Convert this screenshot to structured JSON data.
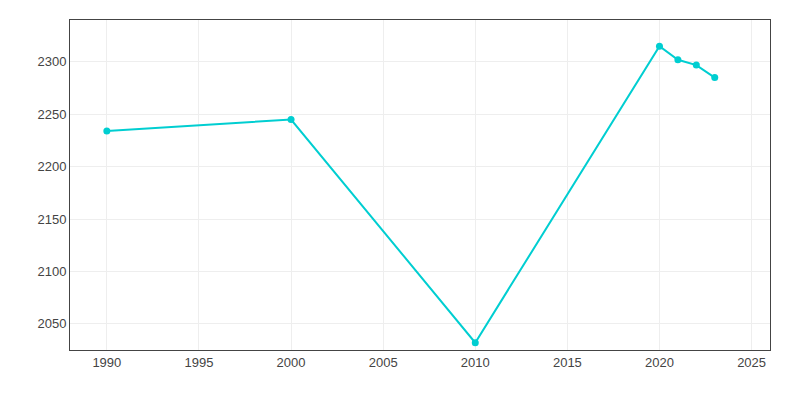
{
  "chart_data": {
    "type": "line",
    "x": [
      1990,
      2000,
      2010,
      2020,
      2021,
      2022,
      2023
    ],
    "values": [
      2234,
      2245,
      2032,
      2315,
      2302,
      2297,
      2285
    ],
    "color": "#00CED1",
    "marker": "circle",
    "xlim": [
      1988,
      2026
    ],
    "ylim": [
      2025,
      2340
    ],
    "xticks": [
      1990,
      1995,
      2000,
      2005,
      2010,
      2015,
      2020,
      2025
    ],
    "yticks": [
      2050,
      2100,
      2150,
      2200,
      2250,
      2300
    ],
    "grid": true
  }
}
